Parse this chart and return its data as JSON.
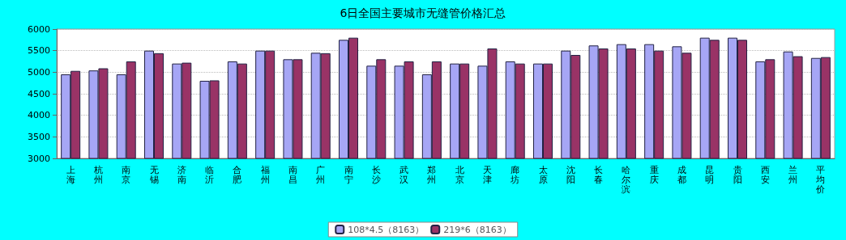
{
  "chart_data": {
    "type": "bar",
    "title": "6日全国主要城市无缝管价格汇总",
    "categories": [
      "上海",
      "杭州",
      "南京",
      "无锡",
      "济南",
      "临沂",
      "合肥",
      "福州",
      "南昌",
      "广州",
      "南宁",
      "长沙",
      "武汉",
      "郑州",
      "北京",
      "天津",
      "廊坊",
      "太原",
      "沈阳",
      "长春",
      "哈尔滨",
      "重庆",
      "成都",
      "昆明",
      "贵阳",
      "西安",
      "兰州",
      "平均价"
    ],
    "series": [
      {
        "name": "108*4.5（8163）",
        "color": "#a6a6f5",
        "values": [
          4950,
          5040,
          4950,
          5500,
          5200,
          4800,
          5250,
          5500,
          5300,
          5450,
          5750,
          5150,
          5150,
          4950,
          5200,
          5150,
          5250,
          5200,
          5500,
          5620,
          5650,
          5650,
          5600,
          5800,
          5800,
          5250,
          5480,
          5330
        ]
      },
      {
        "name": "219*6（8163）",
        "color": "#993366",
        "values": [
          5030,
          5090,
          5250,
          5440,
          5220,
          4810,
          5200,
          5500,
          5300,
          5440,
          5800,
          5300,
          5250,
          5250,
          5200,
          5550,
          5200,
          5200,
          5400,
          5550,
          5550,
          5500,
          5450,
          5750,
          5750,
          5300,
          5370,
          5350
        ]
      }
    ],
    "ylim": [
      3000,
      6000
    ],
    "yticks": [
      3000,
      3500,
      4000,
      4500,
      5000,
      5500,
      6000
    ],
    "grid": "y",
    "legend": "bottom"
  }
}
